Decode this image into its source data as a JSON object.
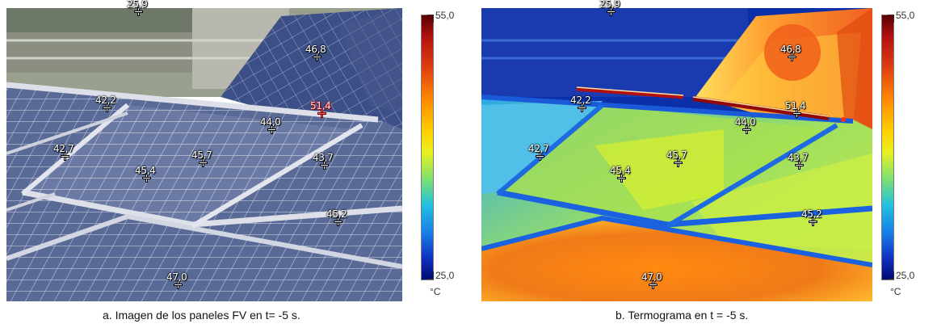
{
  "panel_a": {
    "caption": "a. Imagen de los paneles FV en t= -5 s.",
    "scale_max": "55,0",
    "scale_min": "25,0",
    "scale_unit": "°C",
    "markers": [
      {
        "label": "25,9",
        "hot": false
      },
      {
        "label": "46,8",
        "hot": false
      },
      {
        "label": "42,2",
        "hot": false
      },
      {
        "label": "51,4",
        "hot": true
      },
      {
        "label": "44,0",
        "hot": false
      },
      {
        "label": "42,7",
        "hot": false
      },
      {
        "label": "45,7",
        "hot": false
      },
      {
        "label": "43,7",
        "hot": false
      },
      {
        "label": "45,4",
        "hot": false
      },
      {
        "label": "45,2",
        "hot": false
      },
      {
        "label": "47,0",
        "hot": false
      }
    ]
  },
  "panel_b": {
    "caption": "b. Termograma en t = -5 s.",
    "scale_max": "55,0",
    "scale_min": "25,0",
    "scale_unit": "°C",
    "markers": [
      {
        "label": "25,9",
        "hot": false
      },
      {
        "label": "46,8",
        "hot": false
      },
      {
        "label": "42,2",
        "hot": false
      },
      {
        "label": "51,4",
        "hot": false
      },
      {
        "label": "44,0",
        "hot": false
      },
      {
        "label": "42,7",
        "hot": false
      },
      {
        "label": "45,7",
        "hot": false
      },
      {
        "label": "43,7",
        "hot": false
      },
      {
        "label": "45,4",
        "hot": false
      },
      {
        "label": "45,2",
        "hot": false
      },
      {
        "label": "47,0",
        "hot": false
      }
    ]
  }
}
